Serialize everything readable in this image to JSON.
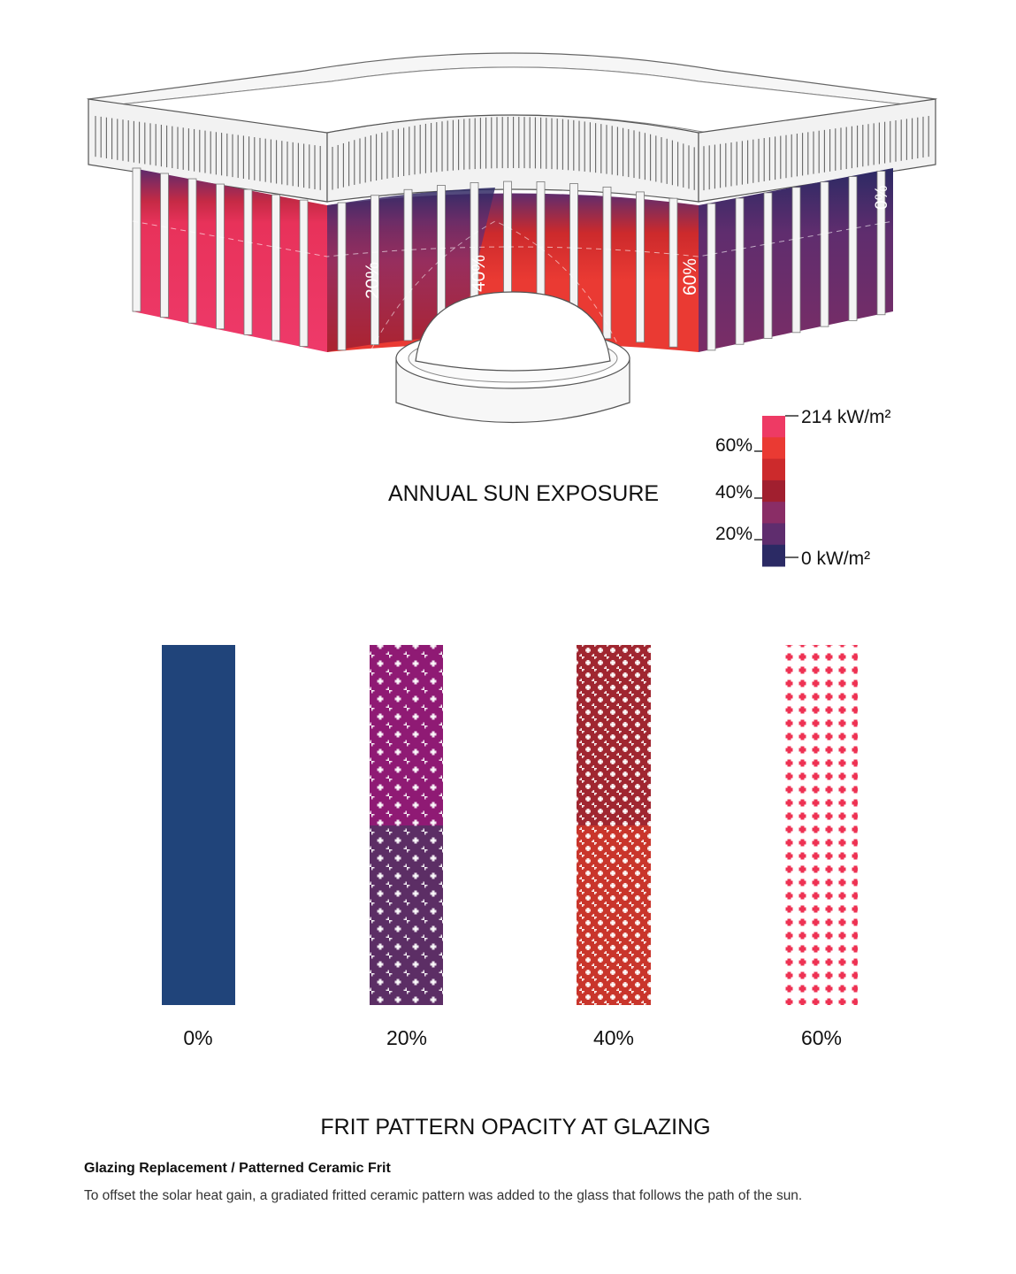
{
  "diagram": {
    "title": "ANNUAL SUN EXPOSURE",
    "facade_zone_labels": [
      "20%",
      "40%",
      "60%",
      "0%"
    ]
  },
  "legend": {
    "max_label": "214 kW/m²",
    "min_label": "0 kW/m²",
    "tick_labels": [
      "60%",
      "40%",
      "20%"
    ],
    "colors_top_to_bottom": [
      "#ee3a64",
      "#ea3a33",
      "#cc2a2c",
      "#a11f2f",
      "#8a2d66",
      "#5f2d6e",
      "#2b2a64"
    ]
  },
  "swatches": {
    "title": "FRIT PATTERN OPACITY AT GLAZING",
    "items": [
      {
        "label": "0%",
        "opacity": 0,
        "colors": [
          "#20447a"
        ],
        "dots": false
      },
      {
        "label": "20%",
        "opacity": 20,
        "colors": [
          "#8f1a74",
          "#5c2e65"
        ],
        "dots": true
      },
      {
        "label": "40%",
        "opacity": 40,
        "colors": [
          "#a02630",
          "#c9352b"
        ],
        "dots": true
      },
      {
        "label": "60%",
        "opacity": 60,
        "colors": [
          "#ee3253"
        ],
        "dots": true
      }
    ]
  },
  "caption": {
    "title": "Glazing Replacement / Patterned Ceramic Frit",
    "body": "To offset the solar heat gain, a gradiated fritted ceramic pattern was added to the glass that follows the path of the sun."
  }
}
